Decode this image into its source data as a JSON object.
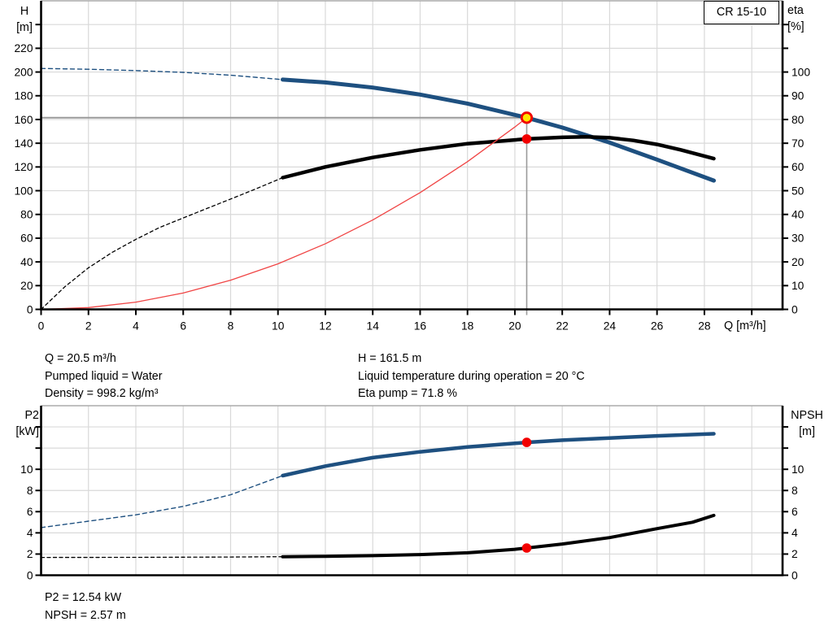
{
  "model_label": "CR 15-10",
  "colors": {
    "curve_blue": "#1e5080",
    "curve_black": "#000000",
    "system_red": "#f04545",
    "marker_red": "#f20000",
    "marker_yellow": "#ffe600",
    "grid": "#d9d9d9",
    "border_gray": "#ababab",
    "crosshair": "#9a9a9a",
    "axis": "#000000"
  },
  "annotations": {
    "q": "Q = 20.5 m³/h",
    "pumped_liquid": "Pumped liquid = Water",
    "density": "Density = 998.2 kg/m³",
    "h": "H = 161.5 m",
    "liquid_temperature": "Liquid temperature during operation = 20 °C",
    "eta_pump": "Eta pump = 71.8 %",
    "p2": "P2 = 12.54 kW",
    "npsh": "NPSH = 2.57 m"
  },
  "chart_data": [
    {
      "type": "line",
      "x_axis": {
        "label": "Q [m³/h]",
        "min": 0,
        "max": 31.3,
        "tick_step": 2,
        "label_max": 28,
        "show_ticks": true
      },
      "left_axis": {
        "title1": "H",
        "title2": "[m]",
        "min": 0,
        "max": 260,
        "tick_step": 20,
        "label_max": 220
      },
      "right_axis": {
        "title1": "eta",
        "title2": "[%]",
        "min": 0,
        "max": 130,
        "tick_step": 10,
        "label_max": 100
      },
      "series": [
        {
          "name": "head-curve-extrapolated",
          "axis": "left",
          "color": "curve_blue",
          "width": 1.4,
          "dash": "5 4",
          "points": [
            [
              0,
              203
            ],
            [
              2,
              202.3
            ],
            [
              4,
              201.2
            ],
            [
              6,
              199.7
            ],
            [
              8,
              197.3
            ],
            [
              10.2,
              193.6
            ]
          ]
        },
        {
          "name": "head-curve",
          "axis": "left",
          "color": "curve_blue",
          "width": 5,
          "dash": null,
          "points": [
            [
              10.2,
              193.6
            ],
            [
              12,
              191.2
            ],
            [
              14,
              186.9
            ],
            [
              16,
              181
            ],
            [
              18,
              173.4
            ],
            [
              20.5,
              161.5
            ],
            [
              22,
              153.2
            ],
            [
              24,
              140.5
            ],
            [
              26,
              126.2
            ],
            [
              28.4,
              108.5
            ]
          ]
        },
        {
          "name": "eta-curve-extrapolated",
          "axis": "right",
          "color": "curve_black",
          "width": 1.3,
          "dash": "4 3.5",
          "points": [
            [
              0,
              0
            ],
            [
              1,
              9.5
            ],
            [
              2,
              17.5
            ],
            [
              3,
              24
            ],
            [
              4,
              29.5
            ],
            [
              5,
              34.5
            ],
            [
              6,
              38.5
            ],
            [
              7,
              42.5
            ],
            [
              8,
              46.5
            ],
            [
              9,
              50.5
            ],
            [
              10.2,
              55.5
            ]
          ]
        },
        {
          "name": "eta-curve",
          "axis": "right",
          "color": "curve_black",
          "width": 4.5,
          "dash": null,
          "points": [
            [
              10.2,
              55.5
            ],
            [
              12,
              60
            ],
            [
              14,
              64
            ],
            [
              16,
              67.2
            ],
            [
              18,
              69.8
            ],
            [
              20,
              71.4
            ],
            [
              20.5,
              71.8
            ],
            [
              22,
              72.5
            ],
            [
              23,
              72.7
            ],
            [
              24,
              72.3
            ],
            [
              25,
              71.2
            ],
            [
              26,
              69.5
            ],
            [
              27,
              67.2
            ],
            [
              28.4,
              63.5
            ]
          ]
        },
        {
          "name": "system-curve",
          "axis": "left",
          "color": "system_red",
          "width": 1.3,
          "dash": null,
          "points": [
            [
              0,
              0
            ],
            [
              2,
              1.5
            ],
            [
              4,
              6.1
            ],
            [
              6,
              13.8
            ],
            [
              8,
              24.6
            ],
            [
              10,
              38.4
            ],
            [
              12,
              55.3
            ],
            [
              14,
              75.3
            ],
            [
              16,
              98.4
            ],
            [
              18,
              124.5
            ],
            [
              20,
              153.7
            ],
            [
              20.5,
              161.5
            ]
          ]
        }
      ],
      "markers": [
        {
          "name": "duty-point",
          "x": 20.5,
          "value": 161.5,
          "axis": "left",
          "style": "duty"
        },
        {
          "name": "eta-operating-point",
          "x": 20.5,
          "value": 71.8,
          "axis": "right",
          "style": "dot"
        }
      ],
      "crosshair": {
        "x": 20.5,
        "value": 161.5,
        "axis": "left"
      }
    },
    {
      "type": "line",
      "x_axis": {
        "label": "",
        "min": 0,
        "max": 31.3,
        "tick_step": 2,
        "label_max": -1,
        "show_ticks": false
      },
      "left_axis": {
        "title1": "P2",
        "title2": "[kW]",
        "min": 0,
        "max": 16,
        "tick_step": 2,
        "label_max": 10
      },
      "right_axis": {
        "title1": "NPSH",
        "title2": "[m]",
        "min": 0,
        "max": 16,
        "tick_step": 2,
        "label_max": 10
      },
      "series": [
        {
          "name": "p2-curve-extrapolated",
          "axis": "left",
          "color": "curve_blue",
          "width": 1.4,
          "dash": "5 4",
          "points": [
            [
              0,
              4.5
            ],
            [
              2,
              5.1
            ],
            [
              4,
              5.7
            ],
            [
              6,
              6.5
            ],
            [
              8,
              7.6
            ],
            [
              10.2,
              9.4
            ]
          ]
        },
        {
          "name": "p2-curve",
          "axis": "left",
          "color": "curve_blue",
          "width": 4.5,
          "dash": null,
          "points": [
            [
              10.2,
              9.4
            ],
            [
              12,
              10.3
            ],
            [
              14,
              11.1
            ],
            [
              16,
              11.65
            ],
            [
              18,
              12.1
            ],
            [
              20,
              12.45
            ],
            [
              20.5,
              12.54
            ],
            [
              22,
              12.75
            ],
            [
              24,
              12.95
            ],
            [
              26,
              13.15
            ],
            [
              28.4,
              13.35
            ]
          ]
        },
        {
          "name": "npsh-curve-extrapolated",
          "axis": "left",
          "color": "curve_black",
          "width": 1.3,
          "dash": "4 3.5",
          "points": [
            [
              0,
              1.68
            ],
            [
              4,
              1.69
            ],
            [
              8,
              1.72
            ],
            [
              10.2,
              1.75
            ]
          ]
        },
        {
          "name": "npsh-curve",
          "axis": "left",
          "color": "curve_black",
          "width": 4,
          "dash": null,
          "points": [
            [
              10.2,
              1.75
            ],
            [
              12,
              1.79
            ],
            [
              14,
              1.85
            ],
            [
              16,
              1.95
            ],
            [
              18,
              2.12
            ],
            [
              20,
              2.45
            ],
            [
              20.5,
              2.57
            ],
            [
              22,
              2.95
            ],
            [
              24,
              3.55
            ],
            [
              26,
              4.4
            ],
            [
              27.5,
              5.0
            ],
            [
              28.4,
              5.65
            ]
          ]
        }
      ],
      "markers": [
        {
          "name": "p2-operating-point",
          "x": 20.5,
          "value": 12.54,
          "axis": "left",
          "style": "dot"
        },
        {
          "name": "npsh-operating-point",
          "x": 20.5,
          "value": 2.57,
          "axis": "left",
          "style": "dot"
        }
      ]
    }
  ]
}
